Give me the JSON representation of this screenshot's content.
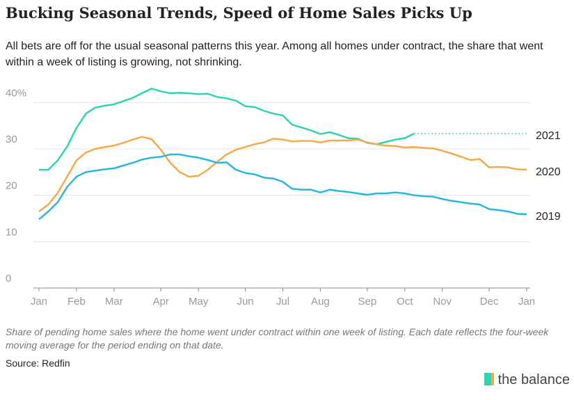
{
  "chart_data": {
    "type": "line",
    "title": "Bucking Seasonal Trends, Speed of Home Sales Picks Up",
    "subtitle": "All bets are off for the usual seasonal patterns this year. Among all homes under contract, the share that went within a week of listing is growing, not shrinking.",
    "note": "Share of pending home sales where the home went under contract within one week of listing. Each date reflects the four-week moving average for the period ending on that date.",
    "source": "Source: Redfin",
    "brand": "the balance",
    "categories": [
      "Jan",
      null,
      null,
      null,
      "Feb",
      null,
      null,
      null,
      "Mar",
      null,
      null,
      null,
      null,
      "Apr",
      null,
      null,
      null,
      "May",
      null,
      null,
      null,
      null,
      "Jun",
      null,
      null,
      null,
      "Jul",
      null,
      null,
      null,
      "Aug",
      null,
      null,
      null,
      null,
      "Sep",
      null,
      null,
      null,
      "Oct",
      null,
      null,
      null,
      "Nov",
      null,
      null,
      null,
      null,
      "Dec",
      null,
      null,
      null,
      "Jan"
    ],
    "series": [
      {
        "name": "2021",
        "color": "#2fd3b0",
        "values": [
          25.5,
          25.5,
          27.5,
          30.5,
          34.5,
          37.6,
          38.9,
          39.3,
          39.6,
          40.3,
          41,
          42,
          43,
          42.4,
          42,
          42.1,
          42,
          41.8,
          41.9,
          41.2,
          40.9,
          40.4,
          39.2,
          39,
          38.2,
          37.6,
          37.2,
          35.2,
          34.6,
          34,
          33.2,
          33.6,
          33,
          32.3,
          32.2,
          31.3,
          31,
          31.5,
          32,
          32.3,
          33.3,
          null,
          null,
          null,
          null,
          null,
          null,
          null,
          null,
          null,
          null,
          null,
          null
        ]
      },
      {
        "name": "2020",
        "color": "#f5a94a",
        "values": [
          16.5,
          18,
          20.5,
          24,
          27.5,
          29.2,
          30,
          30.4,
          30.7,
          31.3,
          32,
          32.6,
          32.1,
          29.8,
          27,
          25,
          24,
          24.2,
          25.5,
          27.2,
          28.8,
          29.8,
          30.4,
          31,
          31.4,
          32.2,
          32,
          31.6,
          31.7,
          31.7,
          31.4,
          31.8,
          31.8,
          31.8,
          32,
          31.4,
          31,
          30.7,
          30.6,
          30.3,
          30.4,
          30.2,
          30.1,
          29.6,
          29,
          28.3,
          27.6,
          27.8,
          26,
          26.1,
          26,
          25.6,
          25.5
        ]
      },
      {
        "name": "2019",
        "color": "#2bb5e0",
        "values": [
          14.8,
          16.5,
          18.5,
          21.8,
          24,
          25,
          25.3,
          25.6,
          25.8,
          26.4,
          27,
          27.7,
          28.1,
          28.3,
          28.8,
          28.8,
          28.4,
          28.1,
          27.6,
          27,
          27.1,
          25.5,
          24.8,
          24.5,
          23.8,
          23.6,
          22.9,
          21.4,
          21.2,
          21.2,
          20.6,
          21.2,
          20.9,
          20.7,
          20.4,
          20.1,
          20.4,
          20.4,
          20.6,
          20.4,
          20,
          19.8,
          19.7,
          19.2,
          18.8,
          18.5,
          18.2,
          18,
          17,
          16.8,
          16.5,
          16,
          15.9
        ]
      }
    ],
    "ylim": [
      0,
      45
    ],
    "yticks": [
      0,
      10,
      20,
      30,
      {
        "value": 40,
        "label": "40%"
      }
    ],
    "grid": true
  }
}
